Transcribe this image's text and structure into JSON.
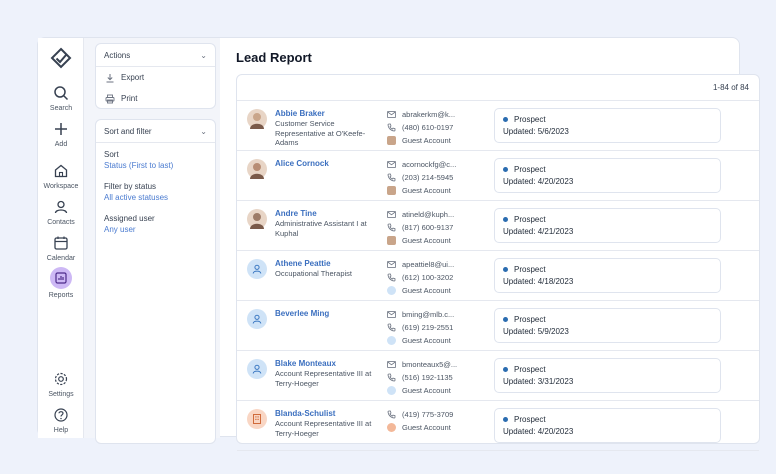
{
  "nav": {
    "items": [
      {
        "label": "Search",
        "icon": "search-icon"
      },
      {
        "label": "Add",
        "icon": "plus-icon"
      },
      {
        "label": "Workspace",
        "icon": "home-icon"
      },
      {
        "label": "Contacts",
        "icon": "user-icon"
      },
      {
        "label": "Calendar",
        "icon": "calendar-icon"
      },
      {
        "label": "Reports",
        "icon": "chart-icon"
      }
    ],
    "bottom": [
      {
        "label": "Settings",
        "icon": "gear-icon"
      },
      {
        "label": "Help",
        "icon": "help-icon"
      }
    ]
  },
  "actions": {
    "title": "Actions",
    "items": [
      "Export",
      "Print"
    ]
  },
  "filters": {
    "title": "Sort and filter",
    "sort_label": "Sort",
    "sort_value": "Status (First to last)",
    "status_label": "Filter by status",
    "status_value": "All active statuses",
    "user_label": "Assigned user",
    "user_value": "Any user"
  },
  "page": {
    "title": "Lead Report",
    "pager": "1-84 of 84"
  },
  "leads": [
    {
      "name": "Abbie Braker",
      "title": "Customer Service Representative at O'Keefe-Adams",
      "email": "abrakerkm@k...",
      "phone": "(480) 610-0197",
      "account": "Guest Account",
      "status": "Prospect",
      "updated": "Updated: 5/6/2023",
      "avatar": "photo"
    },
    {
      "name": "Alice Cornock",
      "title": "",
      "email": "acornockfg@c...",
      "phone": "(203) 214-5945",
      "account": "Guest Account",
      "status": "Prospect",
      "updated": "Updated: 4/20/2023",
      "avatar": "photo"
    },
    {
      "name": "Andre Tine",
      "title": "Administrative Assistant I at Kuphal",
      "email": "atineld@kuph...",
      "phone": "(817) 600-9137",
      "account": "Guest Account",
      "status": "Prospect",
      "updated": "Updated: 4/21/2023",
      "avatar": "photo"
    },
    {
      "name": "Athene Peattie",
      "title": "Occupational Therapist",
      "email": "apeattiel8@ui...",
      "phone": "(612) 100-3202",
      "account": "Guest Account",
      "status": "Prospect",
      "updated": "Updated: 4/18/2023",
      "avatar": "generic"
    },
    {
      "name": "Beverlee Ming",
      "title": "",
      "email": "bming@mlb.c...",
      "phone": "(619) 219-2551",
      "account": "Guest Account",
      "status": "Prospect",
      "updated": "Updated: 5/9/2023",
      "avatar": "generic"
    },
    {
      "name": "Blake Monteaux",
      "title": "Account Representative III at Terry-Hoeger",
      "email": "bmonteaux5@...",
      "phone": "(516) 192-1135",
      "account": "Guest Account",
      "status": "Prospect",
      "updated": "Updated: 3/31/2023",
      "avatar": "generic"
    },
    {
      "name": "Blanda-Schulist",
      "title": "Account Representative III at Terry-Hoeger",
      "email": "",
      "phone": "(419) 775-3709",
      "account": "Guest Account",
      "status": "Prospect",
      "updated": "Updated: 4/20/2023",
      "avatar": "company"
    }
  ],
  "colors": {
    "accent": "#3b6fbf",
    "status_dot": "#2b6cb0",
    "active_nav": "#cdb8f5",
    "background": "#eef2fb"
  }
}
